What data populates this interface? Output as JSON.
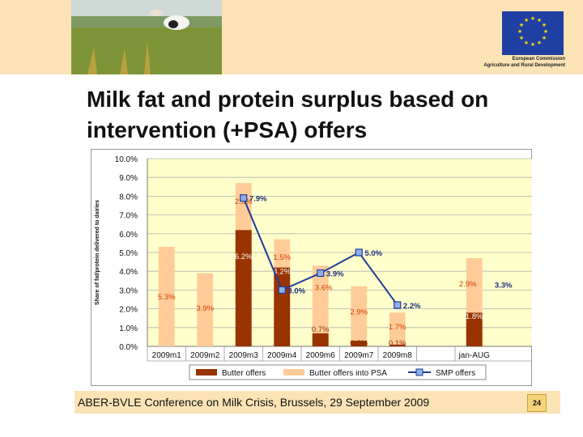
{
  "header": {
    "logo_text_line1": "European Commission",
    "logo_text_line2": "Agriculture and Rural Development"
  },
  "slide": {
    "title_line1": "Milk fat and protein surplus based on",
    "title_line2": "intervention (+PSA) offers"
  },
  "footer": {
    "text": "ABER-BVLE Conference on Milk Crisis, Brussels, 29 September 2009",
    "page_number": "24"
  },
  "chart_data": {
    "type": "bar",
    "stacked": true,
    "ylabel": "Share of fat/protein delivered to dairies",
    "ylim": [
      0,
      10
    ],
    "y_ticks": [
      "0.0%",
      "1.0%",
      "2.0%",
      "3.0%",
      "4.0%",
      "5.0%",
      "6.0%",
      "7.0%",
      "8.0%",
      "9.0%",
      "10.0%"
    ],
    "categories": [
      "2009m1",
      "2009m2",
      "2009m3",
      "2009m4",
      "2009m6",
      "2009m7",
      "2009m8",
      "jan-AUG"
    ],
    "series": [
      {
        "name": "Butter offers",
        "kind": "bar",
        "color": "#993300",
        "values": [
          0,
          0,
          6.2,
          4.2,
          0.7,
          0.3,
          0.1,
          1.8
        ],
        "labels": [
          "",
          "",
          "6.2%",
          "4.2%",
          "0.7%",
          "0.3%",
          "0.1%",
          "1.8%"
        ]
      },
      {
        "name": "Butter offers into PSA",
        "kind": "bar",
        "color": "#ffcc99",
        "values": [
          5.3,
          3.9,
          2.5,
          1.5,
          3.6,
          2.9,
          1.7,
          2.9
        ],
        "labels": [
          "5.3%",
          "3.9%",
          "2.5%",
          "1.5%",
          "3.6%",
          "2.9%",
          "1.7%",
          "2.9%"
        ]
      },
      {
        "name": "SMP offers",
        "kind": "line",
        "color": "#1f3c99",
        "values": [
          null,
          null,
          7.9,
          3.0,
          3.9,
          5.0,
          2.2,
          3.3
        ],
        "labels": [
          "",
          "",
          "7.9%",
          "3.0%",
          "3.9%",
          "5.0%",
          "2.2%",
          "3.3%"
        ]
      }
    ],
    "legend_position": "bottom",
    "grid": true
  }
}
